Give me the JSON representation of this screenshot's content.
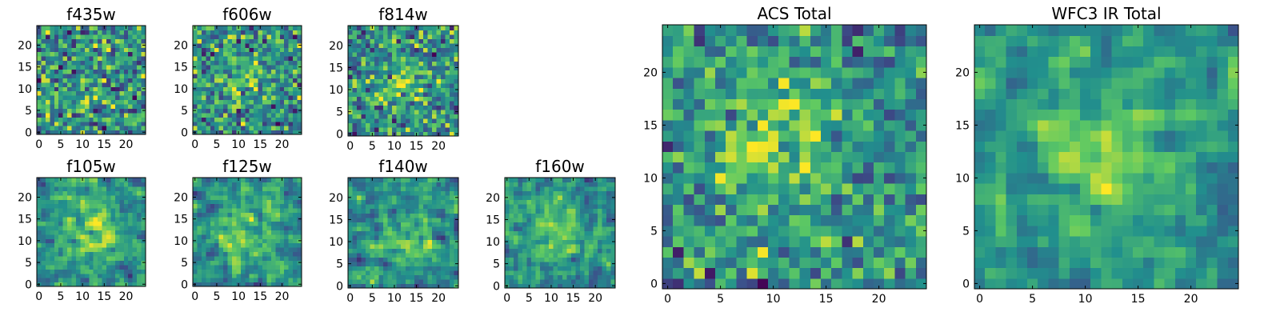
{
  "colormap": {
    "name": "viridis",
    "stops": [
      "#440154",
      "#3b528b",
      "#21908d",
      "#5dc963",
      "#fde725"
    ]
  },
  "chart_data": [
    {
      "type": "heatmap",
      "title": "f435w",
      "grid_size": 25,
      "xticks": [
        0,
        5,
        10,
        15,
        20
      ],
      "yticks": [
        0,
        5,
        10,
        15,
        20
      ],
      "xlim": [
        -0.5,
        24.5
      ],
      "ylim": [
        -0.5,
        24.5
      ],
      "color_range": [
        -1,
        1
      ],
      "seed": 11,
      "noise": 0.55,
      "blob": {
        "cx": 12,
        "cy": 12,
        "sigma": 5,
        "amp": 0.1
      },
      "smooth": 0
    },
    {
      "type": "heatmap",
      "title": "f606w",
      "grid_size": 25,
      "xticks": [
        0,
        5,
        10,
        15,
        20
      ],
      "yticks": [
        0,
        5,
        10,
        15,
        20
      ],
      "xlim": [
        -0.5,
        24.5
      ],
      "ylim": [
        -0.5,
        24.5
      ],
      "color_range": [
        -1,
        1
      ],
      "seed": 23,
      "noise": 0.5,
      "blob": {
        "cx": 11,
        "cy": 13,
        "sigma": 4,
        "amp": 0.35
      },
      "smooth": 0
    },
    {
      "type": "heatmap",
      "title": "f814w",
      "grid_size": 25,
      "xticks": [
        0,
        5,
        10,
        15,
        20
      ],
      "yticks": [
        0,
        5,
        10,
        15,
        20
      ],
      "xlim": [
        -0.5,
        24.5
      ],
      "ylim": [
        -0.5,
        24.5
      ],
      "color_range": [
        -1,
        1
      ],
      "seed": 37,
      "noise": 0.5,
      "blob": {
        "cx": 12,
        "cy": 12,
        "sigma": 3.5,
        "amp": 0.5
      },
      "smooth": 0
    },
    {
      "type": "heatmap",
      "title": "f105w",
      "grid_size": 25,
      "xticks": [
        0,
        5,
        10,
        15,
        20
      ],
      "yticks": [
        0,
        5,
        10,
        15,
        20
      ],
      "xlim": [
        -0.5,
        24.5
      ],
      "ylim": [
        -0.5,
        24.5
      ],
      "color_range": [
        -1,
        1
      ],
      "seed": 41,
      "noise": 0.45,
      "blob": {
        "cx": 13,
        "cy": 12,
        "sigma": 4.5,
        "amp": 0.6
      },
      "smooth": 1
    },
    {
      "type": "heatmap",
      "title": "f125w",
      "grid_size": 25,
      "xticks": [
        0,
        5,
        10,
        15,
        20
      ],
      "yticks": [
        0,
        5,
        10,
        15,
        20
      ],
      "xlim": [
        -0.5,
        24.5
      ],
      "ylim": [
        -0.5,
        24.5
      ],
      "color_range": [
        -1,
        1
      ],
      "seed": 53,
      "noise": 0.45,
      "blob": {
        "cx": 10,
        "cy": 11,
        "sigma": 4.5,
        "amp": 0.55
      },
      "smooth": 1
    },
    {
      "type": "heatmap",
      "title": "f140w",
      "grid_size": 25,
      "xticks": [
        0,
        5,
        10,
        15,
        20
      ],
      "yticks": [
        0,
        5,
        10,
        15,
        20
      ],
      "xlim": [
        -0.5,
        24.5
      ],
      "ylim": [
        -0.5,
        24.5
      ],
      "color_range": [
        -1,
        1
      ],
      "seed": 67,
      "noise": 0.45,
      "blob": {
        "cx": 12,
        "cy": 11,
        "sigma": 4.5,
        "amp": 0.45
      },
      "smooth": 1
    },
    {
      "type": "heatmap",
      "title": "f160w",
      "grid_size": 25,
      "xticks": [
        0,
        5,
        10,
        15,
        20
      ],
      "yticks": [
        0,
        5,
        10,
        15,
        20
      ],
      "xlim": [
        -0.5,
        24.5
      ],
      "ylim": [
        -0.5,
        24.5
      ],
      "color_range": [
        -1,
        1
      ],
      "seed": 79,
      "noise": 0.45,
      "blob": {
        "cx": 11,
        "cy": 12,
        "sigma": 4.5,
        "amp": 0.45
      },
      "smooth": 1
    },
    {
      "type": "heatmap",
      "title": "ACS Total",
      "grid_size": 25,
      "xticks": [
        0,
        5,
        10,
        15,
        20
      ],
      "yticks": [
        0,
        5,
        10,
        15,
        20
      ],
      "xlim": [
        -0.5,
        24.5
      ],
      "ylim": [
        -0.5,
        24.5
      ],
      "color_range": [
        -1,
        1
      ],
      "seed": 97,
      "noise": 0.42,
      "blob": {
        "cx": 10,
        "cy": 13,
        "sigma": 4,
        "amp": 0.55
      },
      "smooth": 0
    },
    {
      "type": "heatmap",
      "title": "WFC3 IR Total",
      "grid_size": 25,
      "xticks": [
        0,
        5,
        10,
        15,
        20
      ],
      "yticks": [
        0,
        5,
        10,
        15,
        20
      ],
      "xlim": [
        -0.5,
        24.5
      ],
      "ylim": [
        -0.5,
        24.5
      ],
      "color_range": [
        -1,
        1
      ],
      "seed": 131,
      "noise": 0.35,
      "blob": {
        "cx": 12,
        "cy": 12,
        "sigma": 4.5,
        "amp": 0.6
      },
      "smooth": 1
    }
  ]
}
